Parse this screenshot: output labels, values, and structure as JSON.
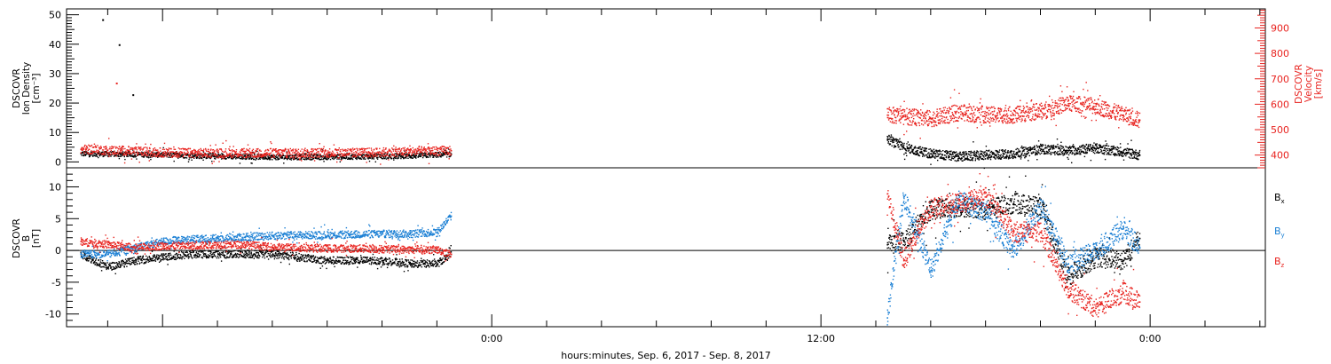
{
  "chart_data": [
    {
      "type": "scatter",
      "panel": "ion-density-velocity",
      "ylabel": [
        "DSCOVR",
        "Ion Density",
        "[cm⁻³]"
      ],
      "y2label": [
        "DSCOVR",
        "Velocity",
        "[km/s]"
      ],
      "ylim": [
        -2,
        52
      ],
      "y2lim": [
        350,
        975
      ],
      "yticks": [
        "0",
        "10",
        "20",
        "30",
        "40",
        "50"
      ],
      "y2ticks": [
        "400",
        "500",
        "600",
        "700",
        "800",
        "900"
      ],
      "series": [
        {
          "name": "",
          "color": "#000000",
          "segments": [
            {
              "x": [
                -15.0,
                -13.5,
                -12.0,
                -10.5,
                -9.0,
                -7.5,
                -6.0,
                -4.5,
                -3.0,
                -1.5
              ],
              "y": [
                3.0,
                2.8,
                2.6,
                2.2,
                2.0,
                1.8,
                1.9,
                2.0,
                2.2,
                2.8
              ]
            },
            {
              "x": [
                14.4,
                15.0,
                16.0,
                17.0,
                18.0,
                19.0,
                20.0,
                21.0,
                22.0,
                23.0,
                23.6
              ],
              "y": [
                8.0,
                5.0,
                3.0,
                2.0,
                2.5,
                3.0,
                4.5,
                4.0,
                4.8,
                3.5,
                2.5
              ]
            }
          ],
          "outliers": {
            "x": [
              -14.2,
              -13.6,
              -13.1
            ],
            "y": [
              48.5,
              40.0,
              23.0
            ]
          }
        },
        {
          "name": "",
          "color": "#e8231f",
          "axis": "right",
          "segments": [
            {
              "x": [
                -15.0,
                -13.5,
                -12.0,
                -10.5,
                -9.0,
                -7.5,
                -6.0,
                -4.5,
                -3.0,
                -1.5
              ],
              "y": [
                425,
                420,
                412,
                410,
                410,
                410,
                412,
                412,
                416,
                420
              ]
            },
            {
              "x": [
                14.4,
                15.0,
                16.0,
                17.0,
                18.0,
                19.0,
                20.0,
                21.0,
                22.0,
                23.0,
                23.6
              ],
              "y": [
                560,
                555,
                545,
                570,
                560,
                560,
                575,
                605,
                595,
                560,
                540
              ]
            }
          ],
          "outliers": {
            "x": [
              -13.7
            ],
            "y": [
              685
            ]
          }
        }
      ]
    },
    {
      "type": "scatter",
      "panel": "magnetic-field",
      "ylabel": [
        "DSCOVR",
        "B",
        "[nT]"
      ],
      "ylim": [
        -12,
        13
      ],
      "yticks": [
        "-10",
        "-5",
        "0",
        "5",
        "10"
      ],
      "zero_line": true,
      "xticks": [
        "0:00",
        "12:00",
        "0:00"
      ],
      "xtick_values": [
        0,
        12,
        24
      ],
      "xlim": [
        -15.5,
        28.2
      ],
      "xlabel": "hours:minutes, Sep.  6, 2017 - Sep.  8, 2017",
      "series": [
        {
          "name": "B",
          "subscript": "x",
          "color": "#000000",
          "segments": [
            {
              "x": [
                -15.0,
                -14.0,
                -13.0,
                -12.0,
                -11.0,
                -10.0,
                -9.0,
                -8.0,
                -7.0,
                -6.0,
                -5.0,
                -4.0,
                -3.0,
                -2.0,
                -1.5
              ],
              "y": [
                -0.5,
                -2.5,
                -1.5,
                -1.0,
                -0.5,
                -0.5,
                -0.5,
                -0.5,
                -1.0,
                -1.5,
                -1.5,
                -1.5,
                -2.0,
                -2.0,
                -0.5
              ]
            },
            {
              "x": [
                14.4,
                15.0,
                16.0,
                17.0,
                18.0,
                19.0,
                20.0,
                21.0,
                22.0,
                23.0,
                23.6
              ],
              "y": [
                1.0,
                1.5,
                6.5,
                7.0,
                6.5,
                7.5,
                7.0,
                -4.0,
                -1.0,
                -1.5,
                2.0
              ]
            }
          ]
        },
        {
          "name": "B",
          "subscript": "y",
          "color": "#1a7fd4",
          "segments": [
            {
              "x": [
                -15.0,
                -14.0,
                -13.0,
                -12.0,
                -11.0,
                -10.0,
                -9.0,
                -8.0,
                -7.0,
                -6.0,
                -5.0,
                -4.0,
                -3.0,
                -2.0,
                -1.5
              ],
              "y": [
                -0.5,
                -0.5,
                0.5,
                1.5,
                1.8,
                2.0,
                2.2,
                2.4,
                2.5,
                2.5,
                2.6,
                2.7,
                2.7,
                3.0,
                5.5
              ]
            },
            {
              "x": [
                14.4,
                15.0,
                16.0,
                17.0,
                18.0,
                19.0,
                20.0,
                21.0,
                22.0,
                23.0,
                23.6
              ],
              "y": [
                -10.5,
                8.5,
                -3.0,
                8.0,
                6.0,
                0.0,
                7.0,
                -2.0,
                0.0,
                3.5,
                0.5
              ]
            }
          ]
        },
        {
          "name": "B",
          "subscript": "z",
          "color": "#e8231f",
          "segments": [
            {
              "x": [
                -15.0,
                -14.0,
                -13.0,
                -12.0,
                -11.0,
                -10.0,
                -9.0,
                -8.0,
                -7.0,
                -6.0,
                -5.0,
                -4.0,
                -3.0,
                -2.0,
                -1.5
              ],
              "y": [
                1.5,
                1.0,
                0.5,
                0.8,
                0.8,
                1.0,
                1.0,
                0.6,
                0.5,
                0.4,
                0.4,
                0.3,
                0.2,
                0.2,
                -0.5
              ]
            },
            {
              "x": [
                14.4,
                15.0,
                16.0,
                17.0,
                18.0,
                19.0,
                20.0,
                21.0,
                22.0,
                23.0,
                23.6
              ],
              "y": [
                9.0,
                -1.5,
                7.0,
                7.5,
                8.5,
                3.0,
                3.0,
                -6.0,
                -9.0,
                -6.5,
                -8.0
              ]
            }
          ]
        }
      ]
    }
  ]
}
